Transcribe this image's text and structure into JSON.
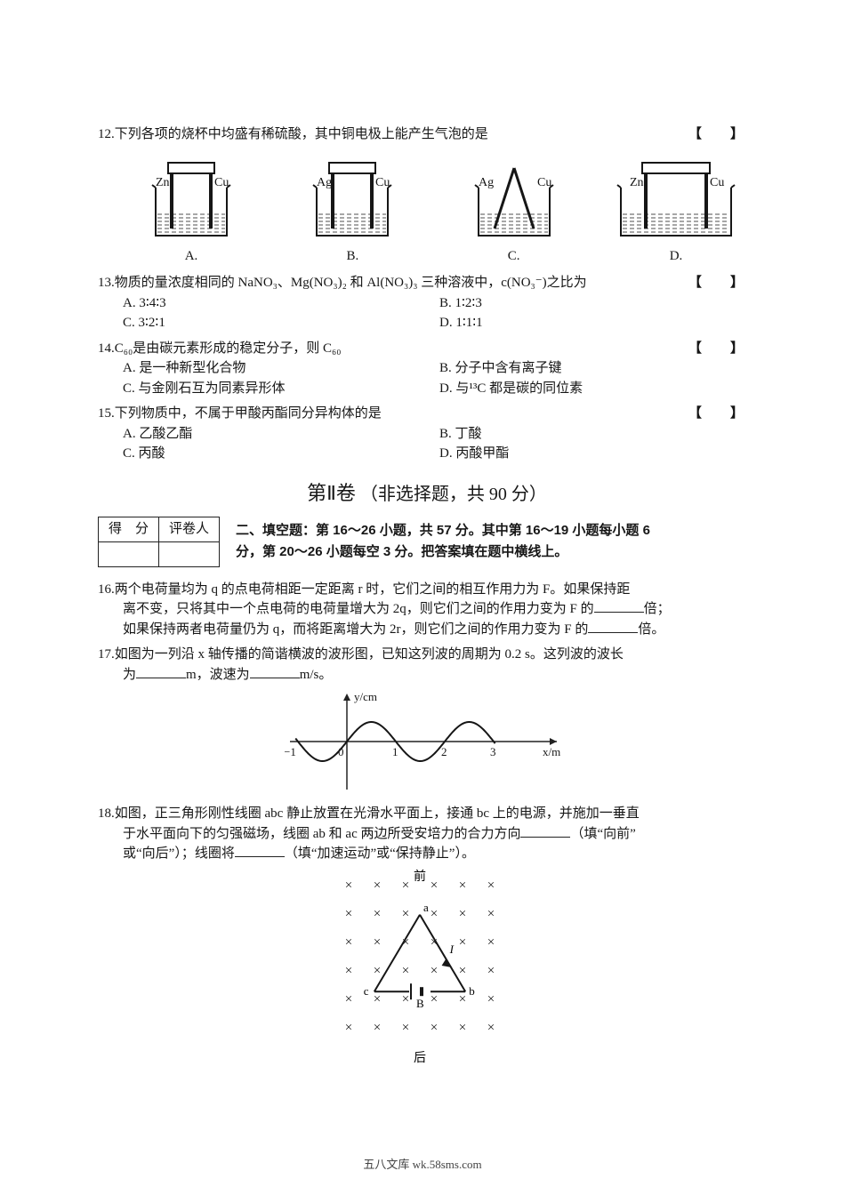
{
  "q12": {
    "num": "12.",
    "text": "下列各项的烧杯中均盛有稀硫酸，其中铜电极上能产生气泡的是",
    "bracket": "【 】",
    "diagrams": [
      {
        "left": "Zn",
        "right": "Cu",
        "wire": true,
        "label": "A."
      },
      {
        "left": "Ag",
        "right": "Cu",
        "wire": true,
        "label": "B."
      },
      {
        "left": "Ag",
        "right": "Cu",
        "wire": false,
        "label": "C."
      },
      {
        "left": "Zn",
        "right": "Cu",
        "wire": true,
        "label": "D.",
        "wide": true
      }
    ]
  },
  "q13": {
    "num": "13.",
    "text": "物质的量浓度相同的 NaNO₃、Mg(NO₃)₂ 和 Al(NO₃)₃ 三种溶液中，c(NO₃⁻)之比为",
    "bracket": "【 】",
    "opts": {
      "A": "A. 3∶4∶3",
      "B": "B. 1∶2∶3",
      "C": "C. 3∶2∶1",
      "D": "D. 1∶1∶1"
    }
  },
  "q14": {
    "num": "14.",
    "text_a": "C₆₀是由碳元素形成的稳定分子，则 C₆₀",
    "bracket": "【 】",
    "opts": {
      "A": "A. 是一种新型化合物",
      "B": "B. 分子中含有离子键",
      "C": "C. 与金刚石互为同素异形体",
      "D": "D. 与¹³C 都是碳的同位素"
    }
  },
  "q15": {
    "num": "15.",
    "text": "下列物质中，不属于甲酸丙酯同分异构体的是",
    "bracket": "【 】",
    "opts": {
      "A": "A. 乙酸乙酯",
      "B": "B. 丁酸",
      "C": "C. 丙酸",
      "D": "D. 丙酸甲酯"
    }
  },
  "section2": {
    "title_a": "第Ⅱ卷",
    "title_b": "（非选择题，共 90 分）"
  },
  "scorebox": {
    "c1": "得　分",
    "c2": "评卷人"
  },
  "fill_instr_1": "二、填空题：第 16～26 小题，共 57 分。其中第 16～19 小题每小题 6",
  "fill_instr_2": "分，第 20～26 小题每空 3 分。把答案填在题中横线上。",
  "q16": {
    "num": "16.",
    "l1a": "两个电荷量均为 q 的点电荷相距一定距离 r 时，它们之间的相互作用力为 F。如果保持距",
    "l2a": "离不变，只将其中一个点电荷的电荷量增大为 2q，则它们之间的作用力变为 F 的",
    "l2b": "倍；",
    "l3a": "如果保持两者电荷量仍为 q，而将距离增大为 2r，则它们之间的作用力变为 F 的",
    "l3b": "倍。"
  },
  "q17": {
    "num": "17.",
    "l1": "如图为一列沿 x 轴传播的简谐横波的波形图，已知这列波的周期为 0.2 s。这列波的波长",
    "l2a": "为",
    "l2b": "m，波速为",
    "l2c": "m/s。",
    "chart": {
      "ylabel": "y/cm",
      "xlabel": "x/m",
      "xticks": [
        "−1",
        "0",
        "1",
        "2",
        "3"
      ],
      "wavelength": 2,
      "amplitude": 22,
      "axis_color": "#222",
      "curve_color": "#161616"
    }
  },
  "q18": {
    "num": "18.",
    "l1": "如图，正三角形刚性线圈 abc 静止放置在光滑水平面上，接通 bc 上的电源，并施加一垂直",
    "l2a": "于水平面向下的匀强磁场，线圈 ab 和 ac 两边所受安培力的合力方向",
    "l2b": "（填“向前”",
    "l3a": "或“向后”）；线圈将",
    "l3b": "（填“加速运动”或“保持静止”）。",
    "dia": {
      "front": "前",
      "back": "后",
      "a": "a",
      "b": "b",
      "c": "c",
      "B": "B",
      "I": "I",
      "cross": "×",
      "cross_color": "#222",
      "rows": 6,
      "cols": 6,
      "step": 32
    }
  },
  "footer": "五八文库 wk.58sms.com"
}
